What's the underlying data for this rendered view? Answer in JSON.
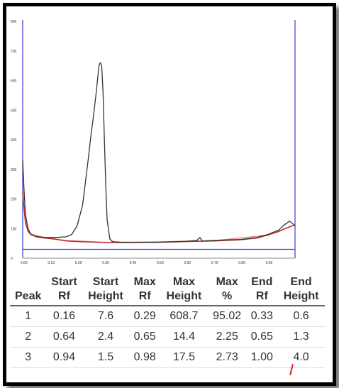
{
  "chart_data": {
    "type": "line",
    "xlim": [
      0,
      1.0
    ],
    "ylim": [
      0,
      800
    ],
    "y_ticks": [
      "0",
      "100",
      "200",
      "300",
      "400",
      "500",
      "600",
      "700",
      "800"
    ],
    "x_ticks": [
      "0.00",
      "0.10",
      "0.20",
      "0.30",
      "0.40",
      "0.50",
      "0.60",
      "0.70",
      "0.80",
      "0.90"
    ],
    "series": [
      {
        "color": "#333333",
        "x": [
          0.0,
          0.005,
          0.01,
          0.02,
          0.03,
          0.05,
          0.08,
          0.12,
          0.16,
          0.18,
          0.2,
          0.22,
          0.24,
          0.25,
          0.26,
          0.27,
          0.28,
          0.285,
          0.29,
          0.295,
          0.3,
          0.305,
          0.31,
          0.32,
          0.33,
          0.36,
          0.4,
          0.5,
          0.6,
          0.64,
          0.65,
          0.66,
          0.7,
          0.8,
          0.86,
          0.9,
          0.94,
          0.96,
          0.98,
          1.0
        ],
        "y": [
          330,
          230,
          150,
          95,
          80,
          73,
          70,
          70,
          72,
          80,
          110,
          180,
          330,
          410,
          480,
          560,
          650,
          660,
          650,
          560,
          400,
          250,
          130,
          65,
          56,
          54,
          53,
          54,
          57,
          60,
          70,
          58,
          60,
          63,
          70,
          80,
          95,
          112,
          125,
          110
        ]
      },
      {
        "color": "#c0282e",
        "x": [
          0.0,
          0.005,
          0.01,
          0.02,
          0.03,
          0.05,
          0.08,
          0.12,
          0.16,
          0.2,
          0.3,
          0.4,
          0.5,
          0.6,
          0.7,
          0.8,
          0.86,
          0.9,
          0.94,
          0.98,
          1.0
        ],
        "y": [
          225,
          170,
          120,
          90,
          80,
          72,
          68,
          64,
          58,
          56,
          53,
          53,
          54,
          56,
          58,
          62,
          68,
          78,
          90,
          106,
          112
        ]
      },
      {
        "color": "#f08a8a",
        "x": [
          0.0,
          0.01,
          0.03,
          0.08,
          0.16,
          0.3,
          0.5,
          0.7,
          0.9,
          1.0
        ],
        "y": [
          210,
          125,
          82,
          70,
          60,
          54,
          55,
          59,
          78,
          112
        ]
      }
    ],
    "baseline_y": 30,
    "table": {
      "headers": [
        [
          "Peak"
        ],
        [
          "Start",
          "Rf"
        ],
        [
          "Start",
          "Height"
        ],
        [
          "Max",
          "Rf"
        ],
        [
          "Max",
          "Height"
        ],
        [
          "Max",
          "%"
        ],
        [
          "End",
          "Rf"
        ],
        [
          "End",
          "Height"
        ]
      ],
      "rows": [
        [
          "1",
          "0.16",
          "7.6",
          "0.29",
          "608.7",
          "95.02",
          "0.33",
          "0.6"
        ],
        [
          "2",
          "0.64",
          "2.4",
          "0.65",
          "14.4",
          "2.25",
          "0.65",
          "1.3"
        ],
        [
          "3",
          "0.94",
          "1.5",
          "0.98",
          "17.5",
          "2.73",
          "1.00",
          "4.0"
        ]
      ]
    }
  }
}
